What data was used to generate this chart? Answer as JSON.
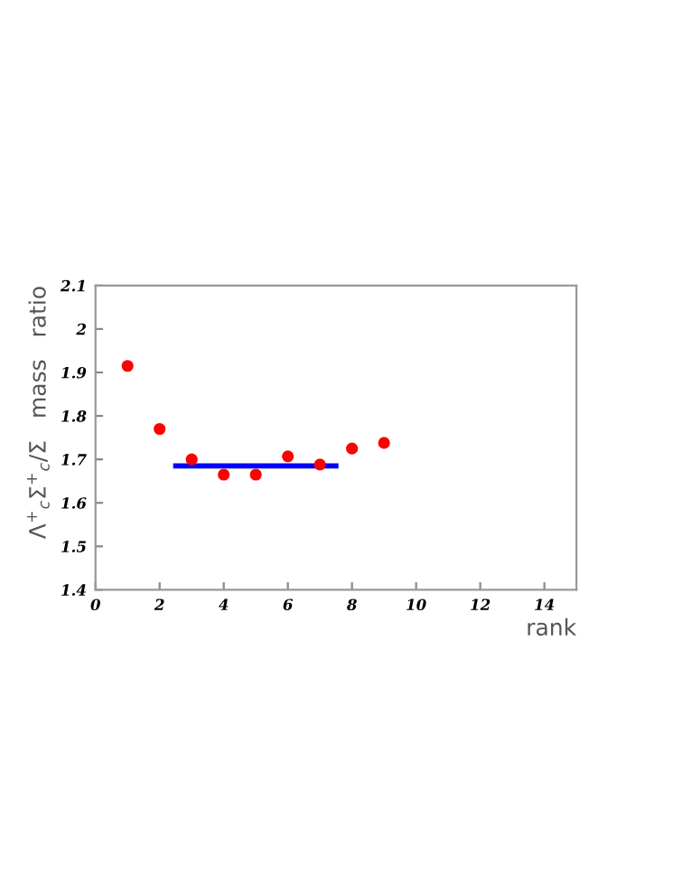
{
  "chart_data": {
    "type": "scatter",
    "xlabel": "rank",
    "ylabel": "Λ$^{+}$$_{c}$Σ$^{+}$$_{c}$/Σ   mass   ratio",
    "series": [
      {
        "color": "#ff0000",
        "marker": "circle",
        "x": [
          1,
          2,
          3,
          4,
          5,
          6,
          7,
          8,
          9
        ],
        "values": [
          1.915,
          1.77,
          1.7,
          1.665,
          1.665,
          1.707,
          1.688,
          1.725,
          1.738
        ]
      },
      {
        "type": "line",
        "color": "#0000ff",
        "x": [
          2.5,
          7.5
        ],
        "values": [
          1.685,
          1.685
        ]
      }
    ],
    "xlim": [
      0,
      15
    ],
    "xticks": [
      0,
      2,
      4,
      6,
      8,
      10,
      12,
      14
    ],
    "ylim": [
      1.4,
      2.1
    ],
    "yticks": [
      1.4,
      1.5,
      1.6,
      1.7,
      1.8,
      1.9,
      2,
      2.1
    ],
    "grid": false,
    "legend": false
  }
}
